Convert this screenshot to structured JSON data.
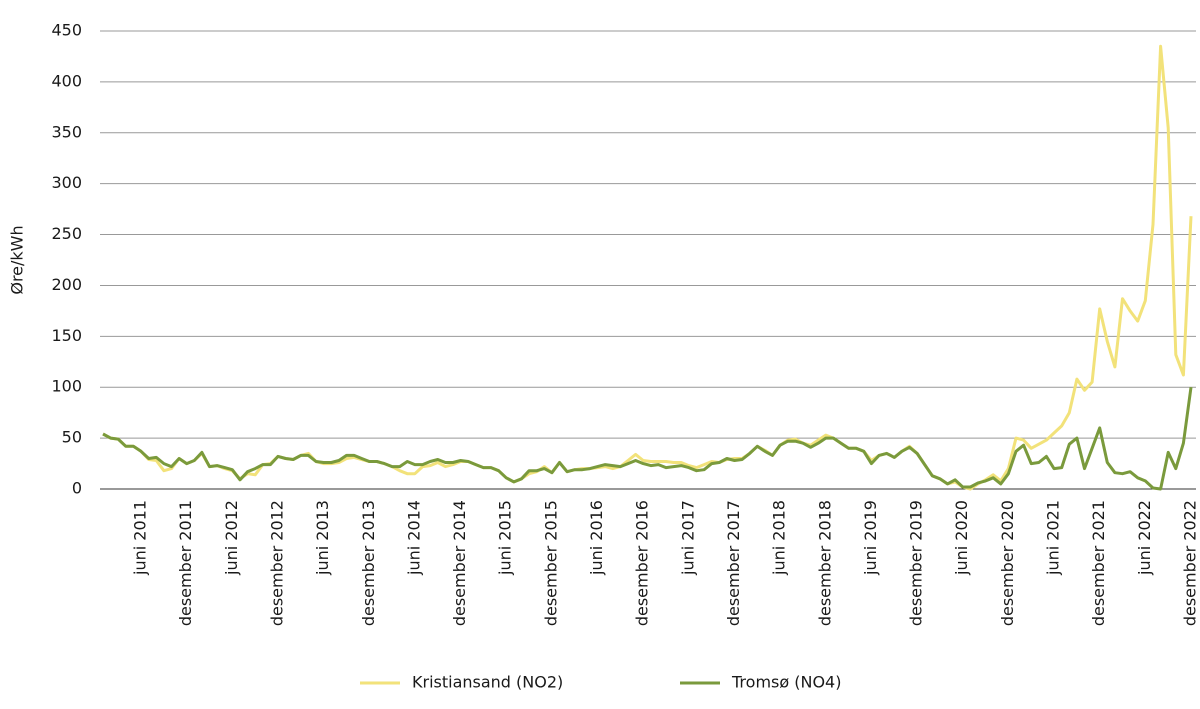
{
  "chart_data": {
    "type": "line",
    "y_label": "Øre/kWh",
    "categories": [
      null,
      null,
      null,
      null,
      null,
      "juni 2011",
      null,
      null,
      null,
      null,
      null,
      "desember 2011",
      null,
      null,
      null,
      null,
      null,
      "juni 2012",
      null,
      null,
      null,
      null,
      null,
      "desember 2012",
      null,
      null,
      null,
      null,
      null,
      "juni 2013",
      null,
      null,
      null,
      null,
      null,
      "desember 2013",
      null,
      null,
      null,
      null,
      null,
      "juni 2014",
      null,
      null,
      null,
      null,
      null,
      "desember 2014",
      null,
      null,
      null,
      null,
      null,
      "juni 2015",
      null,
      null,
      null,
      null,
      null,
      "desember 2015",
      null,
      null,
      null,
      null,
      null,
      "juni 2016",
      null,
      null,
      null,
      null,
      null,
      "desember 2016",
      null,
      null,
      null,
      null,
      null,
      "juni 2017",
      null,
      null,
      null,
      null,
      null,
      "desember 2017",
      null,
      null,
      null,
      null,
      null,
      "juni 2018",
      null,
      null,
      null,
      null,
      null,
      "desember 2018",
      null,
      null,
      null,
      null,
      null,
      "juni 2019",
      null,
      null,
      null,
      null,
      null,
      "desember 2019",
      null,
      null,
      null,
      null,
      null,
      "juni 2020",
      null,
      null,
      null,
      null,
      null,
      "desember 2020",
      null,
      null,
      null,
      null,
      null,
      "juni 2021",
      null,
      null,
      null,
      null,
      null,
      "desember 2021",
      null,
      null,
      null,
      null,
      null,
      "juni 2022",
      null,
      null,
      null,
      null,
      null,
      "desember 2022"
    ],
    "series": [
      {
        "name": "Kristiansand (NO2)",
        "color": "#f2e27a",
        "values": [
          54,
          50,
          49,
          42,
          42,
          37,
          29,
          28,
          18,
          20,
          30,
          25,
          28,
          35,
          22,
          23,
          20,
          18,
          10,
          15,
          14,
          24,
          25,
          32,
          30,
          29,
          33,
          35,
          27,
          25,
          25,
          26,
          30,
          31,
          29,
          27,
          27,
          25,
          22,
          18,
          15,
          15,
          22,
          23,
          26,
          22,
          24,
          27,
          27,
          24,
          21,
          21,
          18,
          11,
          7,
          10,
          15,
          17,
          22,
          16,
          26,
          17,
          19,
          20,
          20,
          21,
          22,
          20,
          22,
          28,
          34,
          28,
          27,
          27,
          27,
          26,
          26,
          23,
          21,
          24,
          27,
          26,
          29,
          30,
          30,
          35,
          42,
          38,
          33,
          43,
          48,
          49,
          45,
          43,
          48,
          53,
          50,
          45,
          40,
          40,
          37,
          28,
          33,
          35,
          31,
          37,
          42,
          35,
          24,
          13,
          10,
          5,
          7,
          2,
          0,
          5,
          9,
          14,
          8,
          20,
          50,
          48,
          40,
          44,
          48,
          55,
          62,
          75,
          108,
          97,
          105,
          177,
          145,
          120,
          187,
          175,
          165,
          185,
          260,
          435,
          355,
          132,
          112,
          268
        ]
      },
      {
        "name": "Tromsø (NO4)",
        "color": "#7a9a3c",
        "values": [
          54,
          50,
          49,
          42,
          42,
          37,
          30,
          31,
          25,
          22,
          30,
          25,
          28,
          36,
          22,
          23,
          21,
          19,
          9,
          17,
          20,
          24,
          24,
          32,
          30,
          29,
          33,
          33,
          27,
          26,
          26,
          28,
          33,
          33,
          30,
          27,
          27,
          25,
          22,
          22,
          27,
          24,
          24,
          27,
          29,
          26,
          26,
          28,
          27,
          24,
          21,
          21,
          18,
          11,
          7,
          10,
          18,
          18,
          20,
          16,
          26,
          17,
          19,
          19,
          20,
          22,
          24,
          23,
          22,
          25,
          28,
          25,
          23,
          24,
          21,
          22,
          23,
          21,
          18,
          19,
          25,
          26,
          30,
          28,
          29,
          35,
          42,
          37,
          33,
          43,
          47,
          47,
          45,
          41,
          45,
          50,
          50,
          45,
          40,
          40,
          37,
          25,
          33,
          35,
          31,
          37,
          41,
          35,
          24,
          13,
          10,
          5,
          9,
          2,
          2,
          6,
          8,
          11,
          5,
          15,
          37,
          43,
          25,
          26,
          32,
          20,
          21,
          44,
          50,
          20,
          40,
          60,
          26,
          16,
          15,
          17,
          11,
          8,
          1,
          0,
          36,
          20,
          45,
          100
        ]
      }
    ],
    "ylim": [
      0,
      450
    ],
    "yticks": [
      0,
      50,
      100,
      150,
      200,
      250,
      300,
      350,
      400,
      450
    ],
    "grid": true
  }
}
